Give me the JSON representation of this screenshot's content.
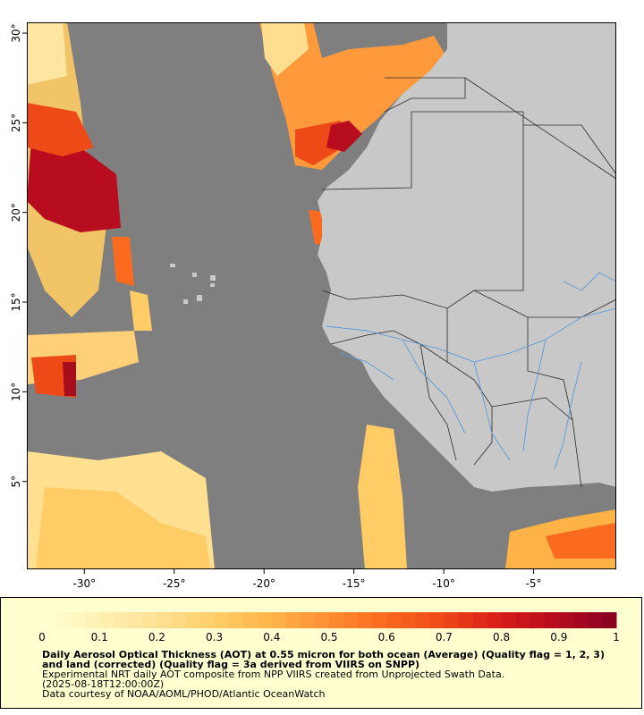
{
  "map": {
    "lon_range": [
      -33.2,
      -0.4
    ],
    "lat_range": [
      0.1,
      30.6
    ],
    "x_ticks": [
      {
        "value": -30,
        "label": "-30°"
      },
      {
        "value": -25,
        "label": "-25°"
      },
      {
        "value": -20,
        "label": "-20°"
      },
      {
        "value": -15,
        "label": "-15°"
      },
      {
        "value": -10,
        "label": "-10°"
      },
      {
        "value": -5,
        "label": "-5°"
      }
    ],
    "y_ticks": [
      {
        "value": 30,
        "label": "30°"
      },
      {
        "value": 25,
        "label": "25°"
      },
      {
        "value": 20,
        "label": "20°"
      },
      {
        "value": 15,
        "label": "15°"
      },
      {
        "value": 10,
        "label": "10°"
      },
      {
        "value": 5,
        "label": "5°"
      }
    ],
    "colors": {
      "ocean_nodata": "#7f7f7f",
      "land": "#c8c8c8",
      "borders": "#2a2a2a",
      "rivers": "#5a9ad6"
    }
  },
  "colorbar": {
    "min": 0,
    "max": 1,
    "tick_labels": [
      "0",
      "0.1",
      "0.2",
      "0.3",
      "0.4",
      "0.5",
      "0.6",
      "0.7",
      "0.8",
      "0.9",
      "1"
    ],
    "colors": [
      "#ffffd0",
      "#fff0b0",
      "#ffe090",
      "#ffcc66",
      "#ffb347",
      "#ff8c33",
      "#fa6a1f",
      "#ee4a18",
      "#d91e18",
      "#b80d1e",
      "#8b0021"
    ]
  },
  "legend": {
    "title": "Daily Aerosol Optical Thickness (AOT) at 0.55 micron for both ocean (Average) (Quality flag = 1, 2, 3) and land (corrected) (Quality flag = 3a derived from VIIRS on SNPP)",
    "line1": "Experimental NRT daily AOT composite from NPP VIIRS created from Unprojected Swath Data.",
    "line2": "(2025-08-18T12:00:00Z)",
    "line3": "Data courtesy of NOAA/AOML/PHOD/Atlantic OceanWatch"
  }
}
